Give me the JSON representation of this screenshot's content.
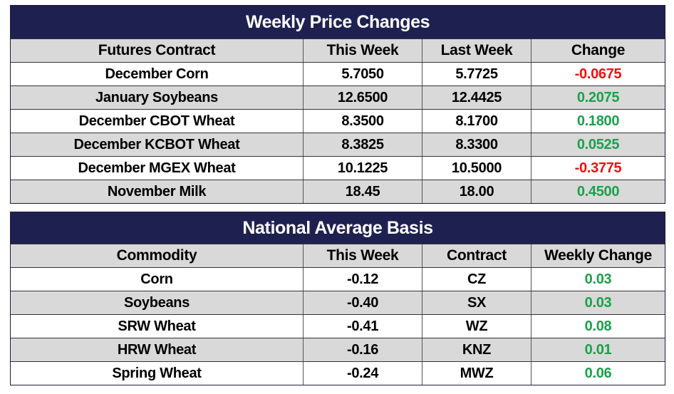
{
  "weekly": {
    "title": "Weekly Price Changes",
    "headers": [
      "Futures Contract",
      "This Week",
      "Last Week",
      "Change"
    ],
    "rows": [
      [
        "December Corn",
        "5.7050",
        "5.7725",
        "-0.0675"
      ],
      [
        "January Soybeans",
        "12.6500",
        "12.4425",
        "0.2075"
      ],
      [
        "December CBOT Wheat",
        "8.3500",
        "8.1700",
        "0.1800"
      ],
      [
        "December KCBOT Wheat",
        "8.3825",
        "8.3300",
        "0.0525"
      ],
      [
        "December MGEX Wheat",
        "10.1225",
        "10.5000",
        "-0.3775"
      ],
      [
        "November Milk",
        "18.45",
        "18.00",
        "0.4500"
      ]
    ]
  },
  "basis": {
    "title": "National Average Basis",
    "headers": [
      "Commodity",
      "This Week",
      "Contract",
      "Weekly Change"
    ],
    "rows": [
      [
        "Corn",
        "-0.12",
        "CZ",
        "0.03"
      ],
      [
        "Soybeans",
        "-0.40",
        "SX",
        "0.03"
      ],
      [
        "SRW Wheat",
        "-0.41",
        "WZ",
        "0.08"
      ],
      [
        "HRW Wheat",
        "-0.16",
        "KNZ",
        "0.01"
      ],
      [
        "Spring Wheat",
        "-0.24",
        "MWZ",
        "0.06"
      ]
    ]
  },
  "colors": {
    "title_bg": "#1e2150",
    "negative": "#ee1111",
    "positive": "#1aa14a",
    "stripe": "#d9d9d9"
  }
}
